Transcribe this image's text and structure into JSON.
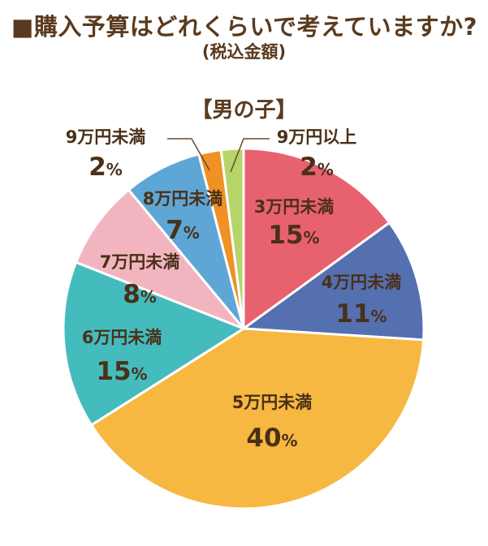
{
  "title": "■購入予算はどれくらいで考えていますか?",
  "subtitle": "(税込金額)",
  "section_label": "【男の子】",
  "chart_data": {
    "type": "pie",
    "title": "■購入予算はどれくらいで考えていますか?",
    "subtitle": "(税込金額)",
    "group": "【男の子】",
    "start": "12 o'clock",
    "direction": "clockwise",
    "slices": [
      {
        "label": "3万円未満",
        "value": 15,
        "color": "#e8616f"
      },
      {
        "label": "4万円未満",
        "value": 11,
        "color": "#5470b1"
      },
      {
        "label": "5万円未満",
        "value": 40,
        "color": "#f7b842"
      },
      {
        "label": "6万円未満",
        "value": 15,
        "color": "#44bcbe"
      },
      {
        "label": "7万円未満",
        "value": 8,
        "color": "#f2b5c0"
      },
      {
        "label": "8万円未満",
        "value": 7,
        "color": "#5ea6d6"
      },
      {
        "label": "9万円未満",
        "value": 2,
        "color": "#ef9124"
      },
      {
        "label": "9万円以上",
        "value": 2,
        "color": "#b6d46a"
      }
    ],
    "unit": "%"
  }
}
